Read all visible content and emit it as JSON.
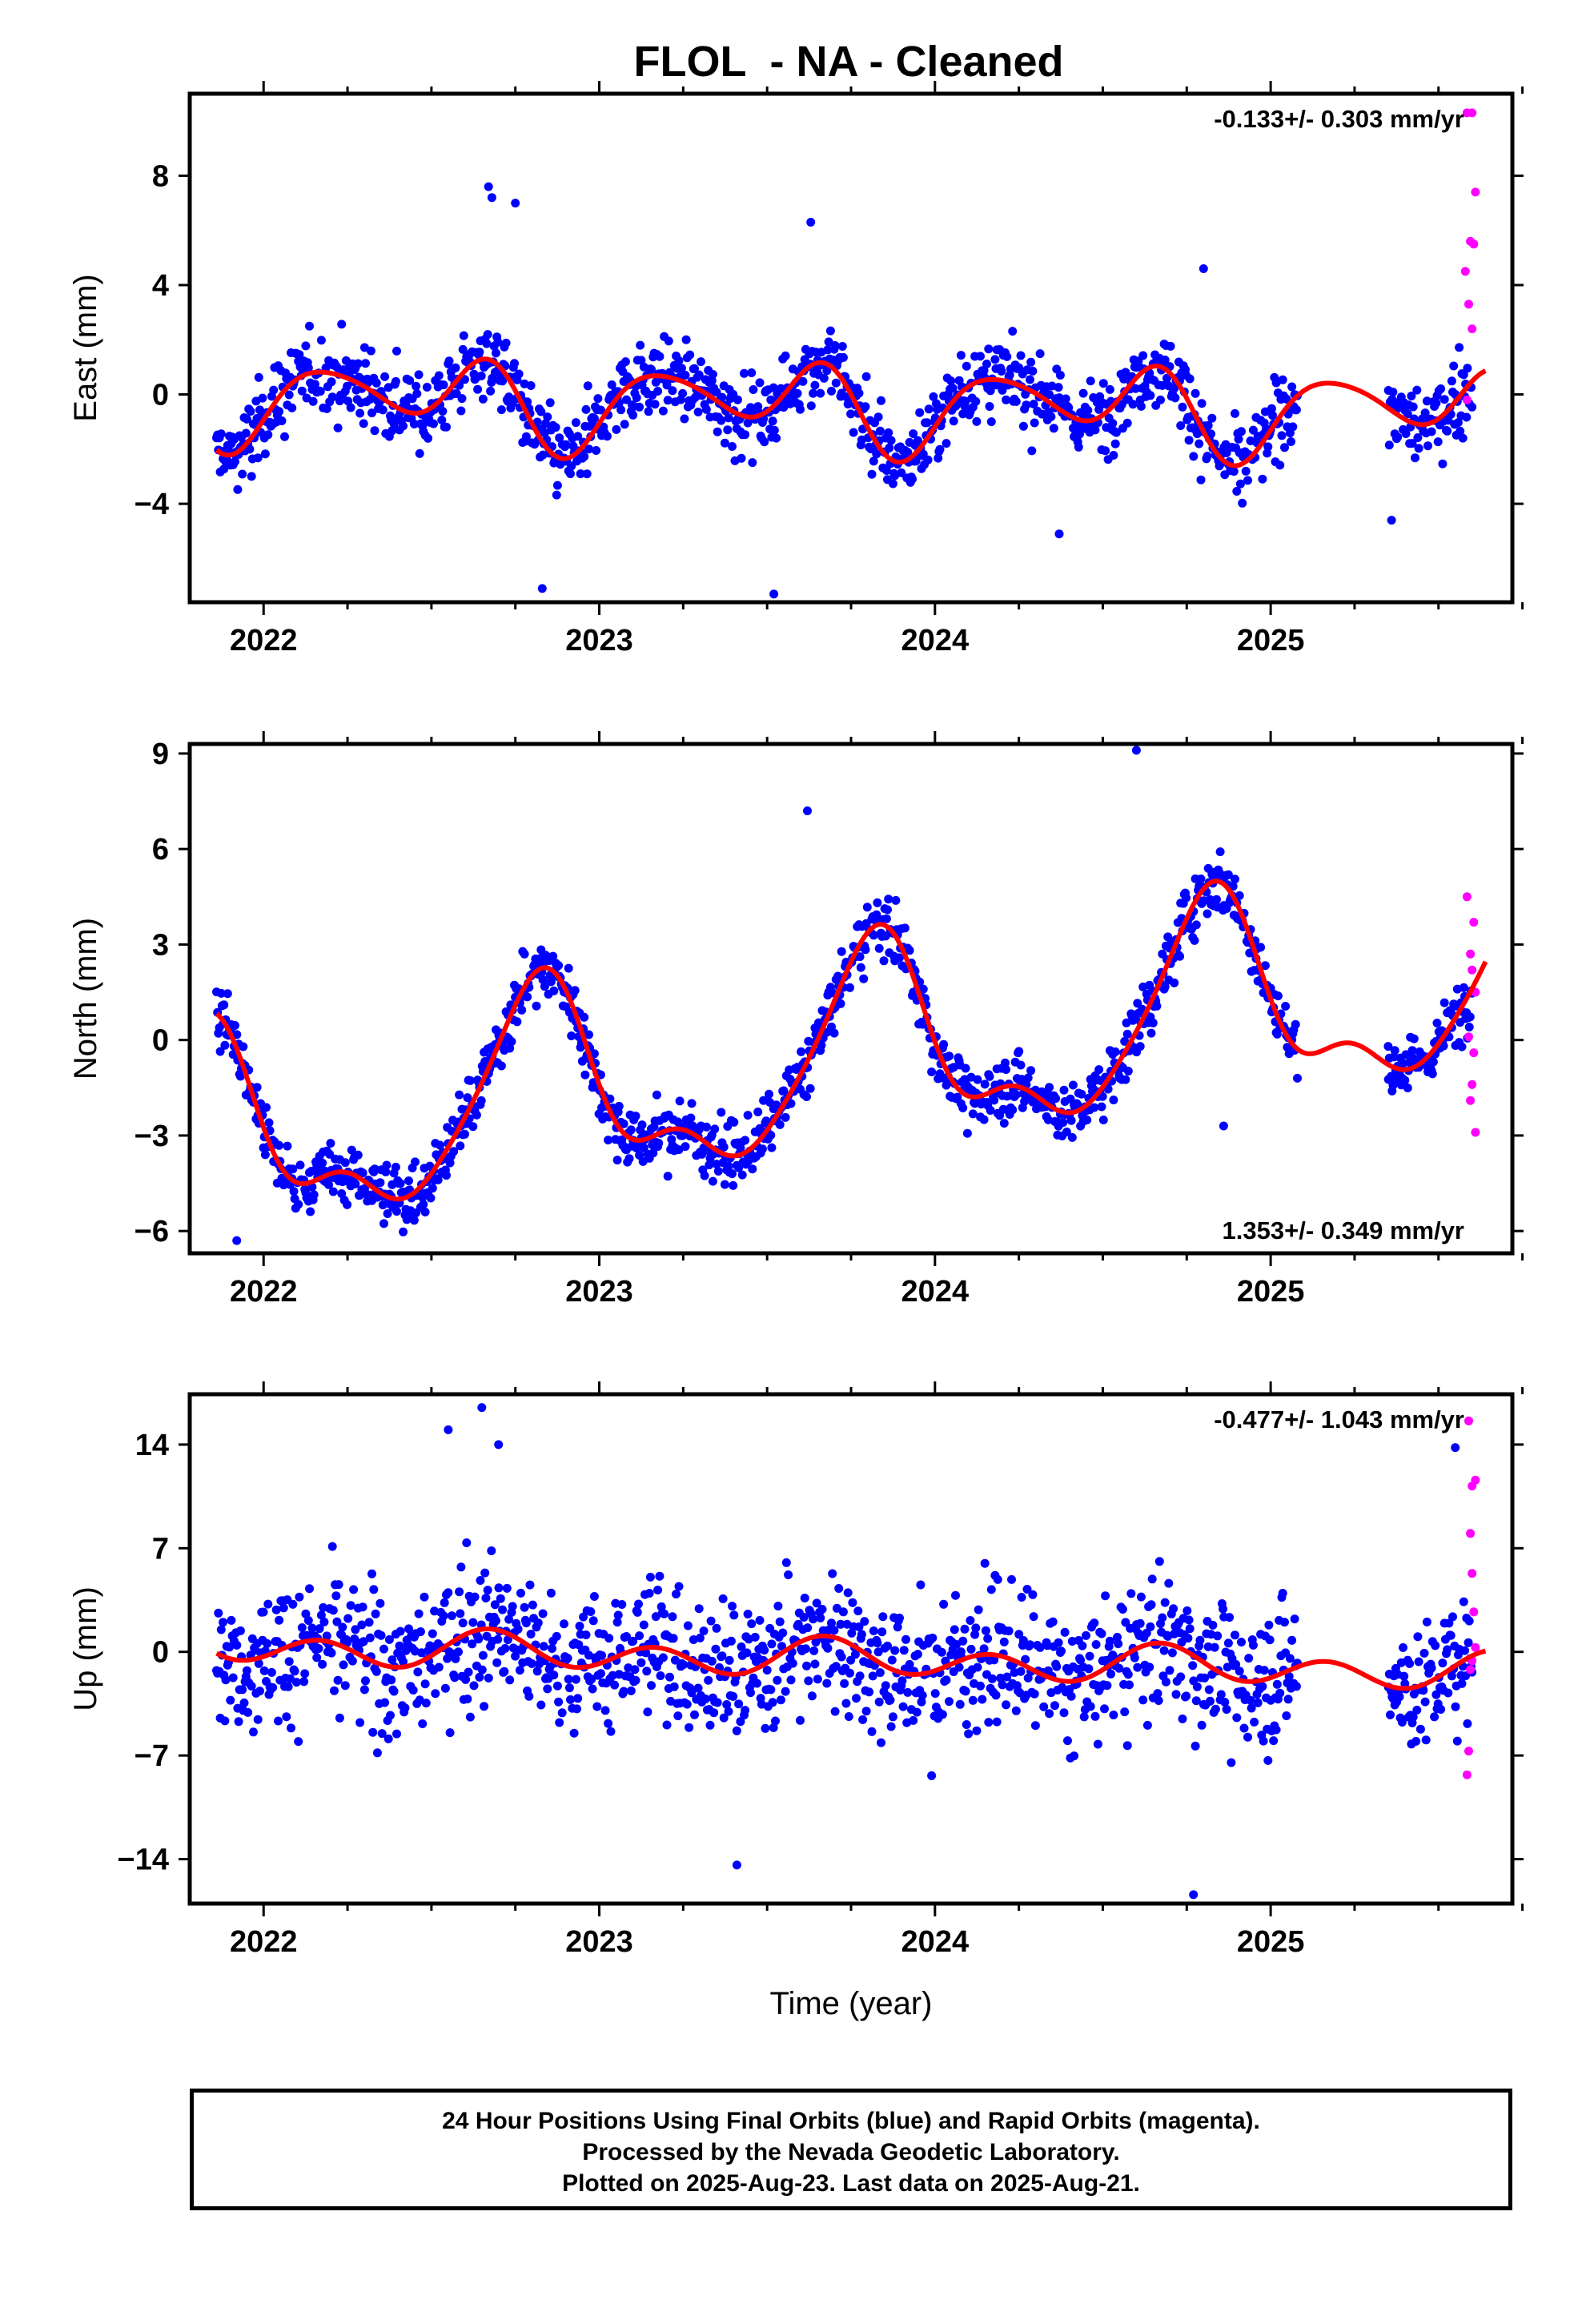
{
  "title": "FLOL  - NA - Cleaned",
  "footer": {
    "line1": "24 Hour Positions Using Final Orbits (blue) and Rapid Orbits (magenta).",
    "line2": "Processed by the Nevada Geodetic Laboratory.",
    "line3": "Plotted on 2025-Aug-23. Last data on 2025-Aug-21."
  },
  "colors": {
    "final": "#0000ff",
    "rapid": "#ff00ff",
    "model": "#ff0000"
  },
  "chart_data": [
    {
      "type": "scatter",
      "component": "east",
      "ylabel": "East (mm)",
      "xlabel": "",
      "xlim": [
        2021.78,
        2025.72
      ],
      "ylim": [
        -7.6,
        11.0
      ],
      "yticks": [
        -4,
        0,
        4,
        8
      ],
      "xticks": [
        2022,
        2023,
        2024,
        2025
      ],
      "rate_label": "-0.133+/- 0.303 mm/yr",
      "rate_position": "top-right",
      "final_data_range": [
        2021.86,
        2025.6
      ],
      "data_gap": [
        2025.08,
        2025.35
      ],
      "rapid_data_range": [
        2025.58,
        2025.64
      ],
      "model": {
        "rate": -0.133,
        "offset": -0.1,
        "annual": [
          {
            "sin": -0.35,
            "cos": 0.55
          }
        ],
        "harmonics": [
          {
            "period": 0.5,
            "sin": 1.1,
            "cos": -0.55
          },
          {
            "period": 0.333,
            "sin": -0.15,
            "cos": -0.3
          }
        ]
      },
      "spread": 1.35,
      "outliers": [
        [
          2022.67,
          7.6
        ],
        [
          2022.68,
          7.2
        ],
        [
          2022.75,
          7.0
        ],
        [
          2022.83,
          -7.1
        ],
        [
          2023.52,
          -7.3
        ],
        [
          2023.63,
          6.3
        ],
        [
          2024.37,
          -5.1
        ],
        [
          2024.8,
          4.6
        ],
        [
          2025.36,
          -4.6
        ]
      ],
      "rapid_points": [
        [
          2025.585,
          10.3
        ],
        [
          2025.6,
          10.3
        ],
        [
          2025.61,
          7.4
        ],
        [
          2025.595,
          5.6
        ],
        [
          2025.605,
          5.5
        ],
        [
          2025.58,
          4.5
        ],
        [
          2025.59,
          3.3
        ],
        [
          2025.6,
          2.4
        ],
        [
          2025.585,
          -0.2
        ]
      ]
    },
    {
      "type": "scatter",
      "component": "north",
      "ylabel": "North (mm)",
      "xlabel": "",
      "xlim": [
        2021.78,
        2025.72
      ],
      "ylim": [
        -6.7,
        9.3
      ],
      "yticks": [
        -6,
        -3,
        0,
        3,
        6,
        9
      ],
      "xticks": [
        2022,
        2023,
        2024,
        2025
      ],
      "rate_label": "1.353+/- 0.349 mm/yr",
      "rate_position": "bottom-right",
      "final_data_range": [
        2021.86,
        2025.6
      ],
      "data_gap": [
        2025.08,
        2025.35
      ],
      "rapid_data_range": [
        2025.58,
        2025.64
      ],
      "model": {
        "rate": 1.353,
        "offset": -3.2,
        "annual": [
          {
            "sin": 2.6,
            "cos": -1.3
          }
        ],
        "harmonics": [
          {
            "period": 0.5,
            "sin": -0.7,
            "cos": -0.8
          },
          {
            "period": 0.333,
            "sin": 0.3,
            "cos": 0.25
          }
        ]
      },
      "spread": 0.95,
      "outliers": [
        [
          2024.6,
          9.1
        ],
        [
          2023.62,
          7.2
        ],
        [
          2021.92,
          -6.3
        ],
        [
          2024.86,
          -2.7
        ],
        [
          2025.35,
          -0.2
        ]
      ],
      "rapid_points": [
        [
          2025.585,
          4.5
        ],
        [
          2025.605,
          3.7
        ],
        [
          2025.595,
          2.7
        ],
        [
          2025.6,
          2.2
        ],
        [
          2025.61,
          1.5
        ],
        [
          2025.59,
          0.1
        ],
        [
          2025.605,
          -0.4
        ],
        [
          2025.6,
          -1.4
        ],
        [
          2025.595,
          -1.9
        ],
        [
          2025.61,
          -2.9
        ]
      ]
    },
    {
      "type": "scatter",
      "component": "up",
      "ylabel": "Up (mm)",
      "xlabel": "Time (year)",
      "xlim": [
        2021.78,
        2025.72
      ],
      "ylim": [
        -17.0,
        17.4
      ],
      "yticks": [
        -14,
        -7,
        0,
        7,
        14
      ],
      "xticks": [
        2022,
        2023,
        2024,
        2025
      ],
      "rate_label": "-0.477+/- 1.043 mm/yr",
      "rate_position": "top-right",
      "final_data_range": [
        2021.86,
        2025.6
      ],
      "data_gap": [
        2025.08,
        2025.35
      ],
      "rapid_data_range": [
        2025.58,
        2025.64
      ],
      "model": {
        "rate": -0.477,
        "offset": 0.4,
        "annual": [
          {
            "sin": 0.5,
            "cos": 0.15
          }
        ],
        "harmonics": [
          {
            "period": 0.5,
            "sin": 0.9,
            "cos": -0.5
          },
          {
            "period": 0.333,
            "sin": 0.0,
            "cos": 0.0
          }
        ]
      },
      "spread": 4.6,
      "outliers": [
        [
          2022.65,
          16.5
        ],
        [
          2022.55,
          15.0
        ],
        [
          2022.7,
          14.0
        ],
        [
          2023.41,
          -14.4
        ],
        [
          2024.77,
          -16.4
        ],
        [
          2025.55,
          13.8
        ]
      ],
      "rapid_points": [
        [
          2025.59,
          15.6
        ],
        [
          2025.61,
          11.6
        ],
        [
          2025.6,
          11.2
        ],
        [
          2025.595,
          8.0
        ],
        [
          2025.6,
          5.3
        ],
        [
          2025.605,
          2.7
        ],
        [
          2025.61,
          0.3
        ],
        [
          2025.6,
          -0.6
        ],
        [
          2025.595,
          -1.2
        ],
        [
          2025.59,
          -6.7
        ],
        [
          2025.585,
          -8.3
        ]
      ]
    }
  ]
}
